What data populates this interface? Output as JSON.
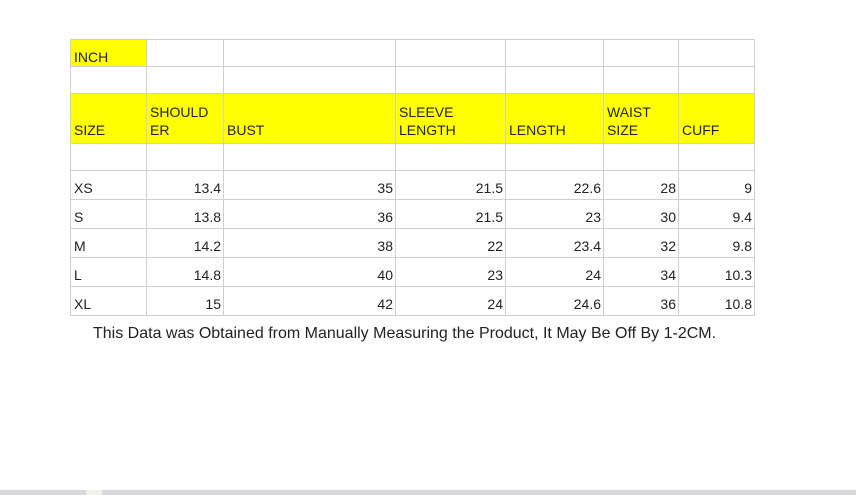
{
  "unit_label": "INCH",
  "headers": [
    {
      "line1": "",
      "line2": "SIZE"
    },
    {
      "line1": "SHOULD",
      "line2": "ER"
    },
    {
      "line1": "",
      "line2": "BUST"
    },
    {
      "line1": "SLEEVE",
      "line2": "LENGTH"
    },
    {
      "line1": "",
      "line2": "LENGTH"
    },
    {
      "line1": "WAIST",
      "line2": "SIZE"
    },
    {
      "line1": "",
      "line2": "CUFF"
    }
  ],
  "rows": [
    {
      "size": "XS",
      "shoulder": "13.4",
      "bust": "35",
      "sleeve_length": "21.5",
      "length": "22.6",
      "waist_size": "28",
      "cuff": "9"
    },
    {
      "size": "S",
      "shoulder": "13.8",
      "bust": "36",
      "sleeve_length": "21.5",
      "length": "23",
      "waist_size": "30",
      "cuff": "9.4"
    },
    {
      "size": "M",
      "shoulder": "14.2",
      "bust": "38",
      "sleeve_length": "22",
      "length": "23.4",
      "waist_size": "32",
      "cuff": "9.8"
    },
    {
      "size": "L",
      "shoulder": "14.8",
      "bust": "40",
      "sleeve_length": "23",
      "length": "24",
      "waist_size": "34",
      "cuff": "10.3"
    },
    {
      "size": "XL",
      "shoulder": "15",
      "bust": "42",
      "sleeve_length": "24",
      "length": "24.6",
      "waist_size": "36",
      "cuff": "10.8"
    }
  ],
  "note": "This Data was Obtained from Manually Measuring the Product, It May Be Off By 1-2CM.",
  "colors": {
    "highlight": "#ffff00",
    "grid": "#d0d0d0",
    "text": "#222222"
  }
}
